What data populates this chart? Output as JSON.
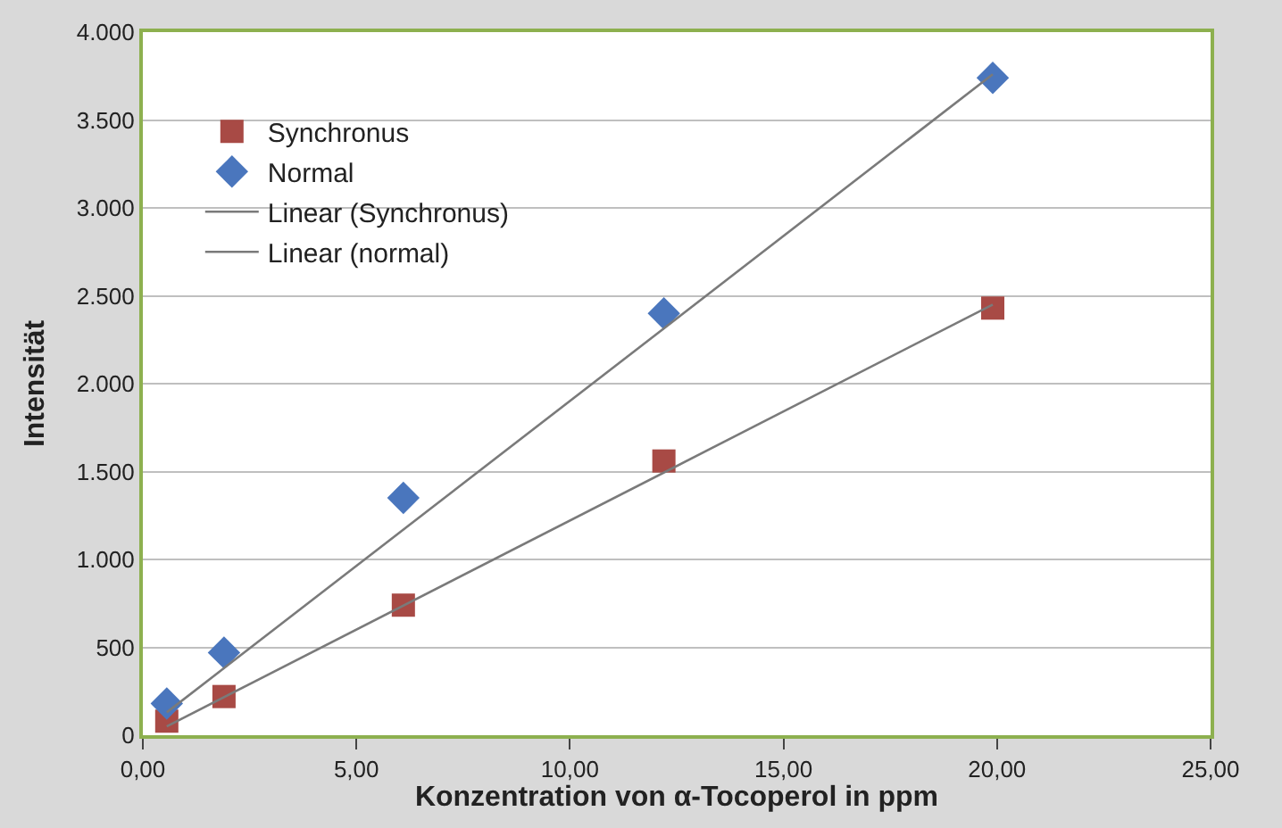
{
  "chart_data": {
    "type": "scatter",
    "xlabel": "Konzentration von α-Tocoperol in ppm",
    "ylabel": "Intensität",
    "xlim": [
      0,
      25
    ],
    "ylim": [
      0,
      4000
    ],
    "xticks": [
      {
        "value": 0,
        "label": "0,00"
      },
      {
        "value": 5,
        "label": "5,00"
      },
      {
        "value": 10,
        "label": "10,00"
      },
      {
        "value": 15,
        "label": "15,00"
      },
      {
        "value": 20,
        "label": "20,00"
      },
      {
        "value": 25,
        "label": "25,00"
      }
    ],
    "yticks": [
      0,
      500,
      {
        "value": 1000,
        "label": "1.000"
      },
      {
        "value": 1500,
        "label": "1.500"
      },
      {
        "value": 2000,
        "label": "2.000"
      },
      {
        "value": 2500,
        "label": "2.500"
      },
      {
        "value": 3000,
        "label": "3.000"
      },
      {
        "value": 3500,
        "label": "3.500"
      },
      {
        "value": 4000,
        "label": "4.000"
      }
    ],
    "grid": "y",
    "legend": "top left",
    "series": [
      {
        "name": "Synchronus",
        "color": "#a84a45",
        "marker": "square",
        "x": [
          0.56,
          1.9,
          6.1,
          12.2,
          19.9
        ],
        "values": [
          80,
          220,
          740,
          1560,
          2430
        ]
      },
      {
        "name": "Normal",
        "color": "#4a76bd",
        "marker": "diamond",
        "x": [
          0.56,
          1.9,
          6.1,
          12.2,
          19.9
        ],
        "values": [
          180,
          470,
          1350,
          2400,
          3740
        ]
      },
      {
        "name": "Linear (Synchronus)",
        "type": "line",
        "color": "#7a7a7a",
        "x": [
          0.56,
          19.9
        ],
        "values": [
          50,
          2450
        ]
      },
      {
        "name": "Linear (normal)",
        "type": "line",
        "color": "#7a7a7a",
        "x": [
          0.56,
          19.9
        ],
        "values": [
          130,
          3760
        ]
      }
    ]
  }
}
